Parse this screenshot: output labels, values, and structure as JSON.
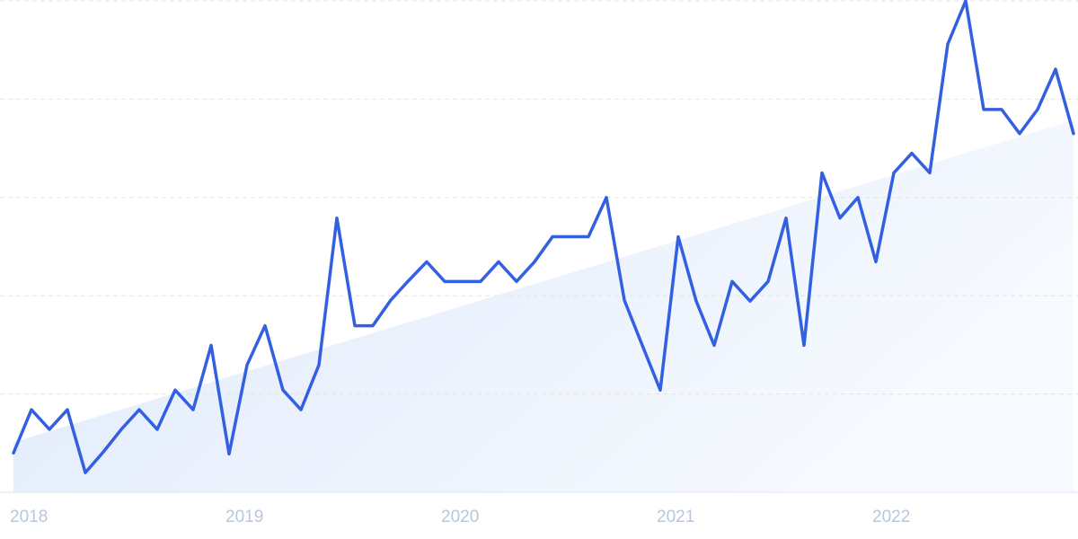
{
  "chart_data": {
    "type": "line",
    "categories": [
      "2018",
      null,
      null,
      null,
      null,
      null,
      null,
      null,
      null,
      null,
      null,
      null,
      "2019",
      null,
      null,
      null,
      null,
      null,
      null,
      null,
      null,
      null,
      null,
      null,
      "2020",
      null,
      null,
      null,
      null,
      null,
      null,
      null,
      null,
      null,
      null,
      null,
      "2021",
      null,
      null,
      null,
      null,
      null,
      null,
      null,
      null,
      null,
      null,
      null,
      "2022",
      null,
      null,
      null,
      null,
      null,
      null,
      null,
      null,
      null,
      null,
      null
    ],
    "series": [
      {
        "color": "#3360e0",
        "values": [
          8,
          16.8,
          12.8,
          16.8,
          4,
          8.2,
          12.8,
          16.8,
          12.8,
          20.8,
          16.8,
          29.9,
          7.8,
          25.9,
          33.9,
          20.8,
          16.8,
          25.9,
          55.8,
          33.9,
          33.9,
          39.1,
          43.1,
          46.9,
          42.9,
          42.9,
          42.9,
          46.9,
          42.9,
          46.9,
          52,
          52,
          52,
          60,
          39.1,
          29.9,
          20.8,
          52,
          38.9,
          29.9,
          42.9,
          38.9,
          42.9,
          55.8,
          29.9,
          65,
          55.8,
          60,
          46.9,
          65,
          69,
          65,
          91.2,
          100,
          77.9,
          77.9,
          73,
          77.9,
          86.1,
          73
        ]
      }
    ],
    "trend": {
      "color": "#dce8fb",
      "values": [
        10.2,
        75.7
      ]
    },
    "ylim": [
      0,
      100
    ],
    "yticks": [
      0,
      20,
      40,
      60,
      80,
      100
    ],
    "grid": true
  }
}
